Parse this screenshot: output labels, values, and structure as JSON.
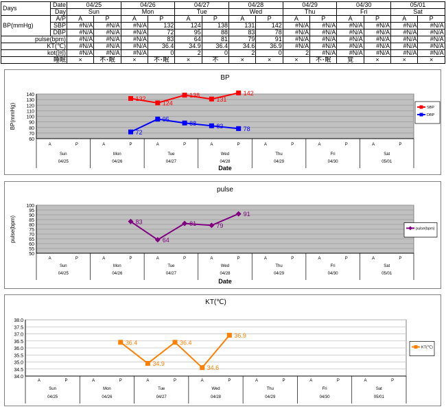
{
  "table": {
    "days_label": "Days",
    "header_rows": [
      {
        "label": "Date",
        "cells": [
          "04/25",
          "04/26",
          "04/27",
          "04/28",
          "04/29",
          "04/30",
          "05/01"
        ]
      },
      {
        "label": "Day",
        "cells": [
          "Sun",
          "Mon",
          "Tue",
          "Wed",
          "Thu",
          "Fri",
          "Sat"
        ]
      }
    ],
    "ap_row": {
      "label": "A/P",
      "cells": [
        "A",
        "P",
        "A",
        "P",
        "A",
        "P",
        "A",
        "P",
        "A",
        "P",
        "A",
        "P",
        "A",
        "P"
      ]
    },
    "bp_group_label": "BP(mmHg)",
    "data_rows": [
      {
        "label": "SBP",
        "cells": [
          "#N/A",
          "#N/A",
          "#N/A",
          "132",
          "124",
          "138",
          "131",
          "142",
          "#N/A",
          "#N/A",
          "#N/A",
          "#N/A",
          "#N/A",
          "#N/A"
        ]
      },
      {
        "label": "DBP",
        "cells": [
          "#N/A",
          "#N/A",
          "#N/A",
          "72",
          "95",
          "88",
          "83",
          "78",
          "#N/A",
          "#N/A",
          "#N/A",
          "#N/A",
          "#N/A",
          "#N/A"
        ]
      },
      {
        "label": "pulse(bpm)",
        "cells": [
          "#N/A",
          "#N/A",
          "#N/A",
          "83",
          "64",
          "81",
          "79",
          "91",
          "#N/A",
          "#N/A",
          "#N/A",
          "#N/A",
          "#N/A",
          "#N/A"
        ]
      },
      {
        "label": "KT(℃)",
        "cells": [
          "#N/A",
          "#N/A",
          "#N/A",
          "36.4",
          "34.9",
          "36.4",
          "34.6",
          "36.9",
          "#N/A",
          "#N/A",
          "#N/A",
          "#N/A",
          "#N/A",
          "#N/A"
        ]
      },
      {
        "label": "kot(回)",
        "cells": [
          "#N/A",
          "#N/A",
          "#N/A",
          "0",
          "2",
          "0",
          "2",
          "0",
          "2",
          "#N/A",
          "#N/A",
          "#N/A",
          "#N/A",
          "#N/A"
        ]
      },
      {
        "label": "睡眠",
        "cells": [
          "×",
          "不･眠",
          "×",
          "不･眠",
          "×",
          "不",
          "×",
          "×",
          "×",
          "不･眠",
          "覚",
          "×",
          "×",
          "×"
        ]
      }
    ]
  },
  "chart_data": [
    {
      "type": "line",
      "title": "BP",
      "xlabel": "Date",
      "ylabel": "BP(mmHg)",
      "ylim": [
        60,
        140
      ],
      "yticks": [
        60,
        70,
        80,
        90,
        100,
        110,
        120,
        130,
        140
      ],
      "categories": [
        "Sun\n04/25 A",
        "Sun\n04/25 P",
        "Mon\n04/26 A",
        "Mon\n04/26 P",
        "Tue\n04/27 A",
        "Tue\n04/27 P",
        "Wed\n04/28 A",
        "Wed\n04/28 P",
        "Thu\n04/29 A",
        "Thu\n04/29 P",
        "Fri\n04/30 A",
        "Fri\n04/30 P",
        "Sat\n05/01 A",
        "Sat\n05/01 P"
      ],
      "ap_labels": [
        "A",
        "P",
        "A",
        "P",
        "A",
        "P",
        "A",
        "P",
        "A",
        "P",
        "A",
        "P",
        "A",
        "P"
      ],
      "days": [
        "Sun",
        "Mon",
        "Tue",
        "Wed",
        "Thu",
        "Fri",
        "Sat"
      ],
      "dates": [
        "04/25",
        "04/26",
        "04/27",
        "04/28",
        "04/29",
        "04/30",
        "05/01"
      ],
      "series": [
        {
          "name": "SBP",
          "color": "#ff0000",
          "marker": "square",
          "values": [
            null,
            null,
            null,
            132,
            124,
            138,
            131,
            142,
            null,
            null,
            null,
            null,
            null,
            null
          ]
        },
        {
          "name": "DBP",
          "color": "#0000ff",
          "marker": "square",
          "values": [
            null,
            null,
            null,
            72,
            95,
            88,
            83,
            78,
            null,
            null,
            null,
            null,
            null,
            null
          ]
        }
      ],
      "legend": "right",
      "grid": true,
      "plot_bg": "#c0c0c0"
    },
    {
      "type": "line",
      "title": "pulse",
      "xlabel": "Date",
      "ylabel": "pulse(bpm)",
      "ylim": [
        50,
        100
      ],
      "yticks": [
        50,
        55,
        60,
        65,
        70,
        75,
        80,
        85,
        90,
        95,
        100
      ],
      "categories": [
        "Sun\n04/25 A",
        "Sun\n04/25 P",
        "Mon\n04/26 A",
        "Mon\n04/26 P",
        "Tue\n04/27 A",
        "Tue\n04/27 P",
        "Wed\n04/28 A",
        "Wed\n04/28 P",
        "Thu\n04/29 A",
        "Thu\n04/29 P",
        "Fri\n04/30 A",
        "Fri\n04/30 P",
        "Sat\n05/01 A",
        "Sat\n05/01 P"
      ],
      "ap_labels": [
        "A",
        "P",
        "A",
        "P",
        "A",
        "P",
        "A",
        "P",
        "A",
        "P",
        "A",
        "P",
        "A",
        "P"
      ],
      "days": [
        "Sun",
        "Mon",
        "Tue",
        "Wed",
        "Thu",
        "Fri",
        "Sat"
      ],
      "dates": [
        "04/25",
        "04/26",
        "04/27",
        "04/28",
        "04/29",
        "04/30",
        "05/01"
      ],
      "series": [
        {
          "name": "pulse(bpm)",
          "color": "#800080",
          "marker": "diamond",
          "values": [
            null,
            null,
            null,
            83,
            64,
            81,
            79,
            91,
            null,
            null,
            null,
            null,
            null,
            null
          ]
        }
      ],
      "legend": "right",
      "grid": true,
      "plot_bg": "#c0c0c0"
    },
    {
      "type": "line",
      "title": "KT(℃)",
      "xlabel": "",
      "ylabel": "",
      "ylim": [
        34.0,
        38.0
      ],
      "yticks": [
        "34.0",
        "34.5",
        "35.0",
        "35.5",
        "36.0",
        "36.5",
        "37.0",
        "37.5",
        "38.0"
      ],
      "categories": [
        "Sun\n04/25 A",
        "Sun\n04/25 P",
        "Mon\n04/26 A",
        "Mon\n04/26 P",
        "Tue\n04/27 A",
        "Tue\n04/27 P",
        "Wed\n04/28 A",
        "Wed\n04/28 P",
        "Thu\n04/29 A",
        "Thu\n04/29 P",
        "Fri\n04/30 A",
        "Fri\n04/30 P",
        "Sat\n05/01 A",
        "Sat\n05/01 P"
      ],
      "ap_labels": [
        "A",
        "P",
        "A",
        "P",
        "A",
        "P",
        "A",
        "P",
        "A",
        "P",
        "A",
        "P",
        "A",
        "P"
      ],
      "days": [
        "Sun",
        "Mon",
        "Tue",
        "Wed",
        "Thu",
        "Fri",
        "Sat"
      ],
      "dates": [
        "04/25",
        "04/26",
        "04/27",
        "04/28",
        "04/29",
        "04/30",
        "05/01"
      ],
      "series": [
        {
          "name": "KT(℃)",
          "color": "#ff8000",
          "marker": "square",
          "values": [
            null,
            null,
            null,
            36.4,
            34.9,
            36.4,
            34.6,
            36.9,
            null,
            null,
            null,
            null,
            null,
            null
          ]
        }
      ],
      "legend": "right",
      "grid": true,
      "plot_bg": "#ffffff"
    }
  ]
}
